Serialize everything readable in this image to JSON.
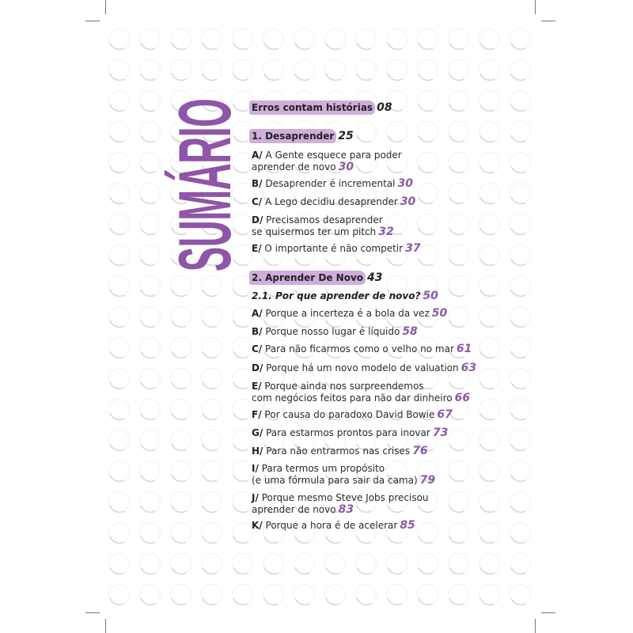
{
  "colors": {
    "accent": "#8e55a8",
    "highlight": "#cfaedc",
    "page_number": "#8a5aa6"
  },
  "title": "SUMÁRIO",
  "intro": {
    "label": "Erros contam histórias",
    "page": "08"
  },
  "part1": {
    "label": "1. Desaprender",
    "page": "25",
    "items": [
      {
        "letter": "A/",
        "lines": [
          "A Gente esquece para poder",
          "aprender de novo"
        ],
        "page": "30"
      },
      {
        "letter": "B/",
        "lines": [
          "Desaprender é incremental"
        ],
        "page": "30"
      },
      {
        "letter": "C/",
        "lines": [
          "A Lego decidiu desaprender"
        ],
        "page": "30"
      },
      {
        "letter": "D/",
        "lines": [
          "Precisamos desaprender",
          "se quisermos ter um pitch"
        ],
        "page": "32"
      },
      {
        "letter": "E/",
        "lines": [
          "O importante é não competir"
        ],
        "page": "37"
      }
    ]
  },
  "part2": {
    "label": "2. Aprender De Novo",
    "page": "43",
    "subsection": {
      "label": "2.1. Por que aprender de novo?",
      "page": "50"
    },
    "items": [
      {
        "letter": "A/",
        "lines": [
          "Porque a incerteza é a bola da vez"
        ],
        "page": "50"
      },
      {
        "letter": "B/",
        "lines": [
          "Porque nosso lugar é líquido"
        ],
        "page": "58"
      },
      {
        "letter": "C/",
        "lines": [
          "Para não ficarmos como o velho no mar"
        ],
        "page": "61"
      },
      {
        "letter": "D/",
        "lines": [
          "Porque há um novo modelo de valuation"
        ],
        "page": "63"
      },
      {
        "letter": "E/",
        "lines": [
          "Porque ainda nos surpreendemos",
          "com negócios feitos para não dar dinheiro"
        ],
        "page": "66"
      },
      {
        "letter": "F/",
        "lines": [
          "Por causa do paradoxo David Bowie"
        ],
        "page": "67"
      },
      {
        "letter": "G/",
        "lines": [
          "Para estarmos prontos para inovar"
        ],
        "page": "73"
      },
      {
        "letter": "H/",
        "lines": [
          "Para não entrarmos nas crises"
        ],
        "page": "76"
      },
      {
        "letter": "I/",
        "lines": [
          "Para termos um propósito",
          "(e uma fórmula para sair da cama)"
        ],
        "page": "79"
      },
      {
        "letter": "J/",
        "lines": [
          "Porque mesmo Steve Jobs precisou",
          "aprender de novo"
        ],
        "page": "83"
      },
      {
        "letter": "K/",
        "lines": [
          "Porque a hora é de acelerar"
        ],
        "page": "85"
      }
    ]
  }
}
